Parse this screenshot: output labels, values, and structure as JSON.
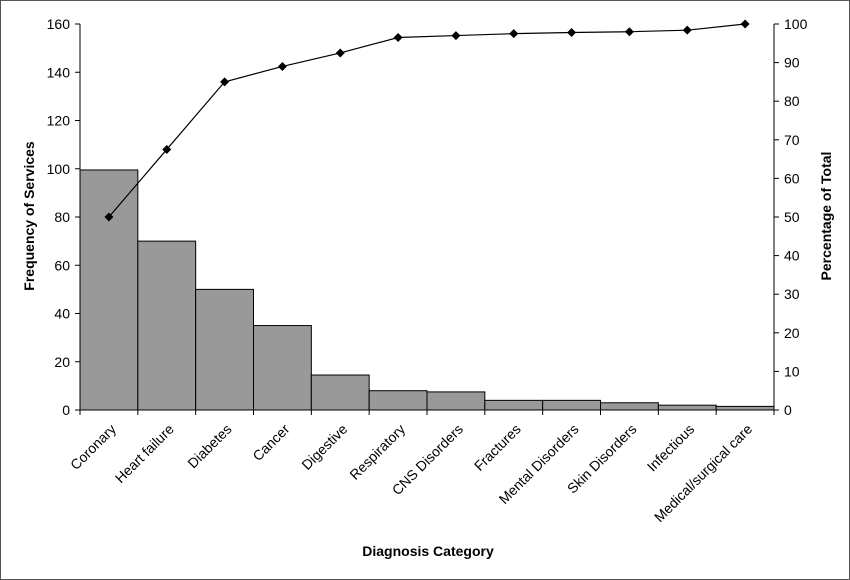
{
  "chart_data": {
    "type": "bar",
    "title": "",
    "xlabel": "Diagnosis Category",
    "ylabel": "Frequency of Services",
    "y2label": "Percentage of Total",
    "ylim": [
      0,
      160
    ],
    "y2lim": [
      0,
      100
    ],
    "yticks": [
      "0",
      "20",
      "40",
      "60",
      "80",
      "100",
      "120",
      "140",
      "160"
    ],
    "y2ticks": [
      "0",
      "10",
      "20",
      "30",
      "40",
      "50",
      "60",
      "70",
      "80",
      "90",
      "100"
    ],
    "grid": false,
    "legend": "none",
    "categories": [
      "Coronary",
      "Heart failure",
      "Diabetes",
      "Cancer",
      "Digestive",
      "Respiratory",
      "CNS Disorders",
      "Fractures",
      "Mental Disorders",
      "Skin Disorders",
      "Infectious",
      "Medical/surgical care"
    ],
    "series": [
      {
        "type": "bar",
        "axis": "left",
        "values": [
          99.5,
          70,
          50,
          35,
          14.5,
          8,
          7.5,
          4,
          4,
          3,
          2,
          1.5
        ]
      },
      {
        "type": "line",
        "axis": "right",
        "marker": "diamond",
        "values": [
          50,
          67.5,
          85,
          89,
          92.5,
          96.5,
          97,
          97.5,
          97.8,
          98,
          98.4,
          100
        ]
      }
    ],
    "colors": {
      "bar_fill": "#999999",
      "bar_stroke": "#000000",
      "line": "#000000"
    }
  }
}
